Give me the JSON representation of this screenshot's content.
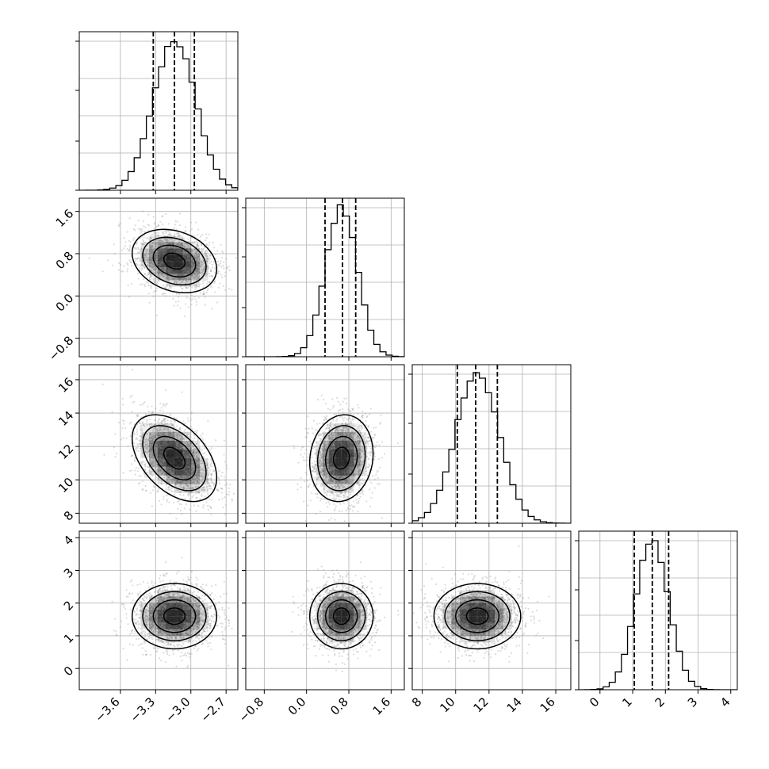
{
  "chart_data": {
    "type": "corner",
    "parameters": [
      {
        "label": "",
        "range": [
          -3.95,
          -2.6
        ],
        "ticks": [
          -3.6,
          -3.3,
          -3.0,
          -2.7
        ],
        "tick_labels": [
          "−3.6",
          "−3.3",
          "−3.0",
          "−2.7"
        ],
        "quantiles": [
          -3.32,
          -3.14,
          -2.97
        ],
        "mean": -3.14,
        "sd": 0.18,
        "hist_peak": 0.95
      },
      {
        "label": "",
        "range": [
          -1.15,
          1.85
        ],
        "ticks": [
          -0.8,
          0.0,
          0.8,
          1.6
        ],
        "tick_labels": [
          "−0.8",
          "0.0",
          "0.8",
          "1.6"
        ],
        "quantiles": [
          0.35,
          0.68,
          0.93
        ],
        "mean": 0.66,
        "sd": 0.3,
        "hist_peak": 0.95
      },
      {
        "label": "",
        "range": [
          7.4,
          16.9
        ],
        "ticks": [
          8,
          10,
          12,
          14,
          16
        ],
        "tick_labels": [
          "8",
          "10",
          "12",
          "14",
          "16"
        ],
        "quantiles": [
          10.1,
          11.2,
          12.5
        ],
        "mean": 11.3,
        "sd": 1.3,
        "hist_peak": 0.95
      },
      {
        "label": "",
        "range": [
          -0.65,
          4.2
        ],
        "ticks": [
          0,
          1,
          2,
          3,
          4
        ],
        "tick_labels": [
          "0",
          "1",
          "2",
          "3",
          "4"
        ],
        "quantiles": [
          1.05,
          1.6,
          2.1
        ],
        "mean": 1.6,
        "sd": 0.5,
        "hist_peak": 0.95
      }
    ],
    "correlations": [
      [
        1,
        -0.25,
        -0.45,
        0.0
      ],
      [
        -0.25,
        1,
        0.1,
        0.0
      ],
      [
        -0.45,
        0.1,
        1,
        0.0
      ],
      [
        0.0,
        0.0,
        0.0,
        1
      ]
    ],
    "contour_levels_sigma": [
      0.5,
      1.0,
      1.5,
      2.0
    ],
    "quantile_line_style": "dashed",
    "grid": true,
    "colors": {
      "contour": "#000000",
      "scatter": "#9a9a9a",
      "density": "#000000",
      "grid": "#b0b0b0"
    }
  }
}
